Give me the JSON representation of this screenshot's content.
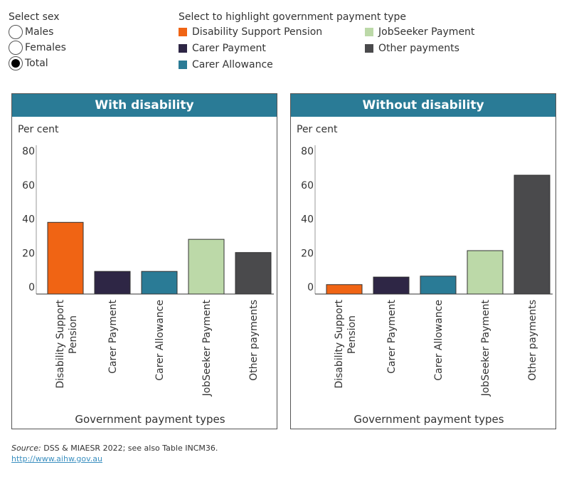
{
  "sex_filter": {
    "title": "Select sex",
    "options": [
      "Males",
      "Females",
      "Total"
    ],
    "selected": "Total"
  },
  "legend": {
    "title": "Select to highlight government payment type",
    "items": [
      {
        "label": "Disability Support Pension",
        "color": "#f06414"
      },
      {
        "label": "Carer Payment",
        "color": "#2e2645"
      },
      {
        "label": "Carer Allowance",
        "color": "#2a7b96"
      },
      {
        "label": "JobSeeker Payment",
        "color": "#bcd9a8"
      },
      {
        "label": "Other payments",
        "color": "#4a4a4c"
      }
    ]
  },
  "chart_data": [
    {
      "type": "bar",
      "title": "With disability",
      "ylabel": "Per cent",
      "xlabel": "Government payment types",
      "ylim": [
        0,
        80
      ],
      "yticks": [
        0,
        20,
        40,
        60,
        80
      ],
      "categories": [
        "Disability Support Pension",
        "Carer Payment",
        "Carer Allowance",
        "JobSeeker Payment",
        "Other payments"
      ],
      "values": [
        38,
        12,
        12,
        29,
        22
      ]
    },
    {
      "type": "bar",
      "title": "Without disability",
      "ylabel": "Per cent",
      "xlabel": "Government payment types",
      "ylim": [
        0,
        80
      ],
      "yticks": [
        0,
        20,
        40,
        60,
        80
      ],
      "categories": [
        "Disability Support Pension",
        "Carer Payment",
        "Carer Allowance",
        "JobSeeker Payment",
        "Other payments"
      ],
      "values": [
        5,
        9,
        9.5,
        23,
        63
      ]
    }
  ],
  "footer": {
    "source_label": "Source:",
    "source_text": " DSS & MIAESR 2022; see also Table INCM36.",
    "link": "http://www.aihw.gov.au"
  }
}
